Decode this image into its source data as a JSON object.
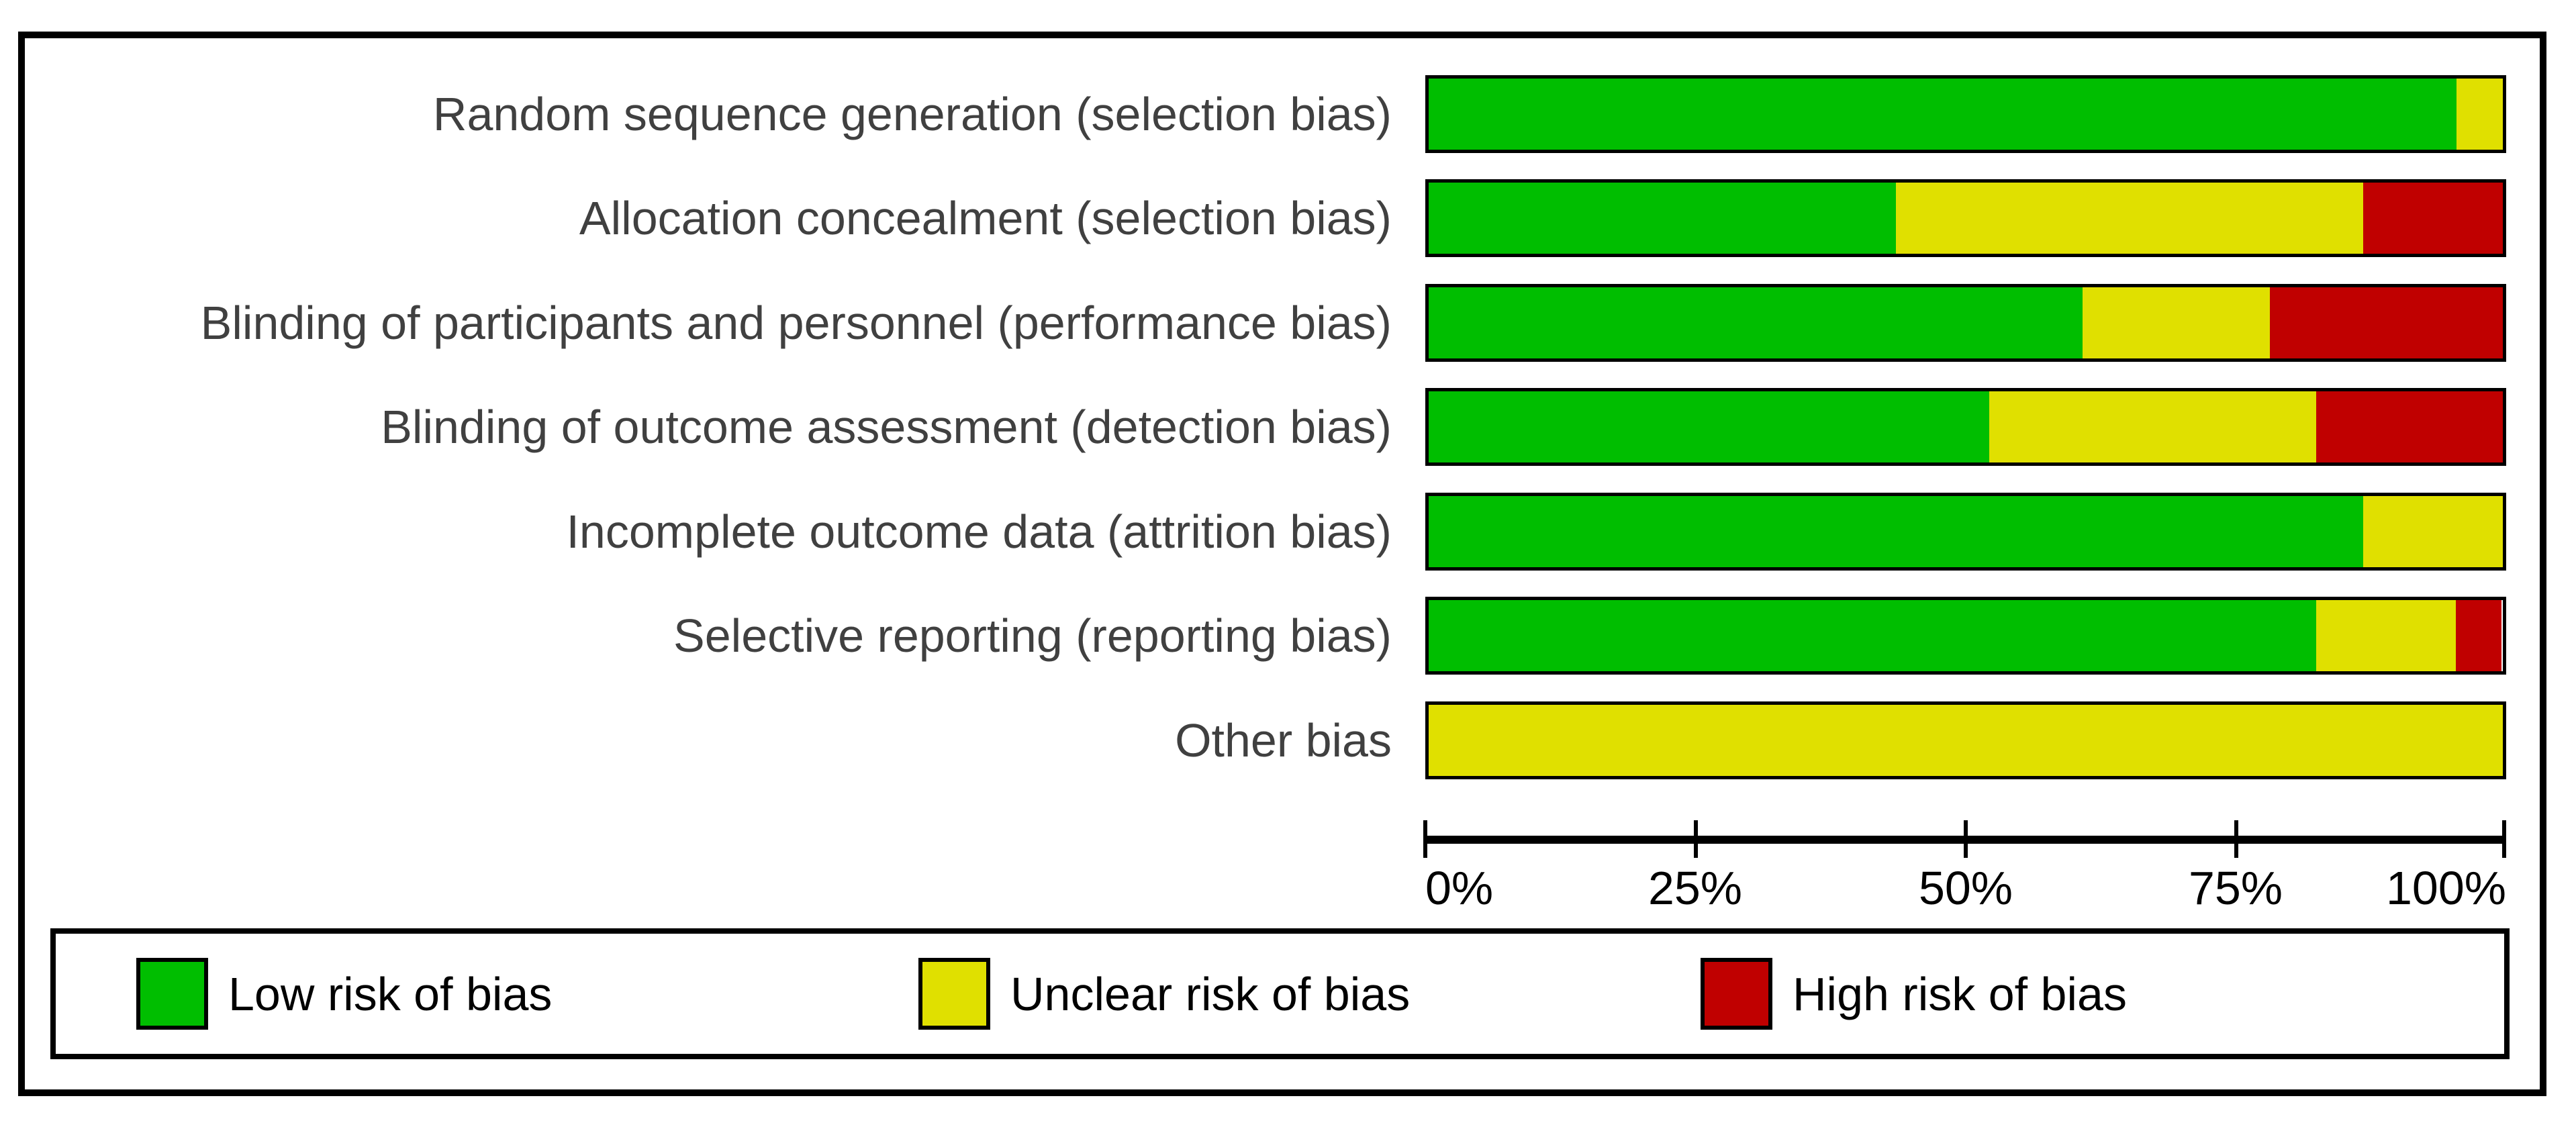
{
  "chart_data": {
    "type": "bar",
    "orientation": "horizontal",
    "stacked": true,
    "grid": false,
    "legend_position": "bottom",
    "xlim": [
      0,
      100
    ],
    "x_ticks": [
      "0%",
      "25%",
      "50%",
      "75%",
      "100%"
    ],
    "x_tick_positions": [
      0,
      25,
      50,
      75,
      100
    ],
    "categories": [
      "Random sequence generation (selection bias)",
      "Allocation concealment (selection bias)",
      "Blinding of participants and personnel (performance bias)",
      "Blinding of outcome assessment (detection bias)",
      "Incomplete outcome data (attrition bias)",
      "Selective reporting (reporting bias)",
      "Other bias"
    ],
    "series": [
      {
        "key": "low",
        "name": "Low risk of bias",
        "color": "#00BE00",
        "values": [
          95.7,
          43.5,
          60.9,
          52.2,
          87.0,
          82.6,
          0
        ]
      },
      {
        "key": "unclear",
        "name": "Unclear risk of bias",
        "color": "#E0E000",
        "values": [
          4.3,
          43.5,
          17.4,
          30.4,
          13.0,
          13.0,
          100
        ]
      },
      {
        "key": "high",
        "name": "High risk of bias",
        "color": "#C00000",
        "values": [
          0,
          13.0,
          21.7,
          17.4,
          0,
          4.3,
          0
        ]
      }
    ]
  },
  "layout": {
    "row_tops": [
      55,
      210,
      366,
      521,
      677,
      832,
      988
    ],
    "frame_border_color": "#000000",
    "label_text_color": "#404040",
    "axis_text_color": "#000000"
  }
}
